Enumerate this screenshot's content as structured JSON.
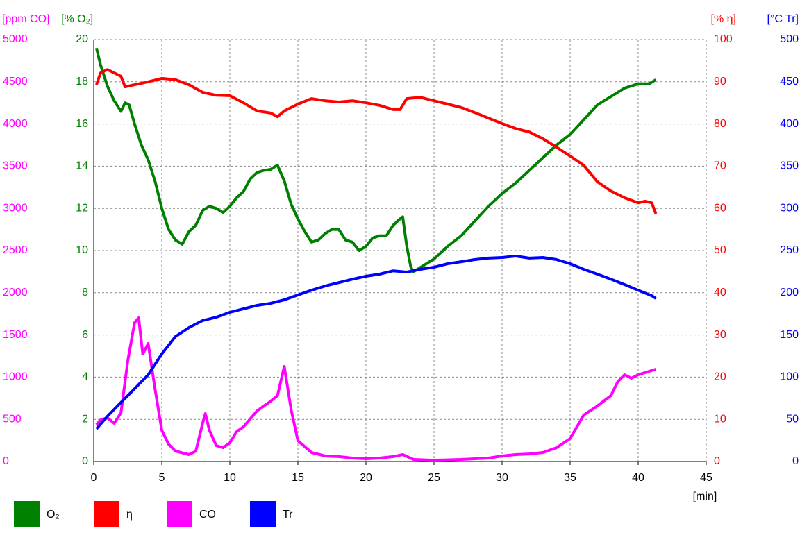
{
  "chart_data": {
    "type": "line",
    "xlabel": "[min]",
    "xlim": [
      0,
      45
    ],
    "xticks": [
      0,
      5,
      10,
      15,
      20,
      25,
      30,
      35,
      40,
      45
    ],
    "grid": true,
    "ylabel": "[% O₂]",
    "ylim": [
      0,
      20
    ],
    "yticks": [
      0,
      2,
      4,
      6,
      8,
      10,
      12,
      14,
      16,
      18,
      20
    ],
    "y2label": "[% η]",
    "y2lim": [
      0,
      100
    ],
    "y2ticks": [
      0,
      10,
      20,
      30,
      40,
      50,
      60,
      70,
      80,
      90,
      100
    ],
    "y3label": "[ppm CO]",
    "y3lim": [
      0,
      5000
    ],
    "y3ticks": [
      0,
      500,
      1000,
      1500,
      2000,
      2500,
      3000,
      3500,
      4000,
      4500,
      5000
    ],
    "y4label": "[°C Tr]",
    "y4lim": [
      0,
      500
    ],
    "y4ticks": [
      0,
      50,
      100,
      150,
      200,
      250,
      300,
      350,
      400,
      450,
      500
    ],
    "series": [
      {
        "name": "O₂",
        "color": "#008000",
        "axis": "y",
        "x": [
          0.2,
          0.5,
          1,
          1.5,
          2,
          2.3,
          2.6,
          3,
          3.5,
          4,
          4.5,
          5,
          5.5,
          6,
          6.5,
          7,
          7.5,
          8,
          8.5,
          9,
          9.5,
          10,
          10.5,
          11,
          11.5,
          12,
          12.5,
          13,
          13.5,
          14,
          14.5,
          15,
          15.5,
          16,
          16.5,
          17,
          17.5,
          18,
          18.5,
          19,
          19.5,
          20,
          20.5,
          21,
          21.5,
          22,
          22.5,
          22.7,
          23,
          23.3,
          23.5,
          24,
          24.5,
          25,
          26,
          27,
          28,
          29,
          30,
          31,
          32,
          33,
          34,
          35,
          36,
          37,
          38,
          39,
          40,
          40.8,
          41.3
        ],
        "values": [
          19.6,
          18.8,
          17.8,
          17.1,
          16.6,
          17.0,
          16.9,
          16,
          15,
          14.3,
          13.3,
          12,
          11,
          10.5,
          10.3,
          10.9,
          11.2,
          11.9,
          12.1,
          12,
          11.8,
          12.1,
          12.5,
          12.8,
          13.4,
          13.7,
          13.8,
          13.85,
          14.05,
          13.3,
          12.2,
          11.5,
          10.9,
          10.4,
          10.5,
          10.8,
          11,
          11,
          10.5,
          10.4,
          10,
          10.2,
          10.6,
          10.7,
          10.7,
          11.2,
          11.5,
          11.6,
          10.2,
          9.2,
          9,
          9.2,
          9.4,
          9.6,
          10.2,
          10.7,
          11.4,
          12.1,
          12.7,
          13.2,
          13.8,
          14.4,
          15,
          15.5,
          16.2,
          16.9,
          17.3,
          17.7,
          17.9,
          17.9,
          18.1
        ]
      },
      {
        "name": "η",
        "color": "#ff0000",
        "axis": "y2",
        "x": [
          0.2,
          0.5,
          1,
          1.5,
          2,
          2.3,
          3,
          4,
          5,
          6,
          7,
          8,
          9,
          10,
          11,
          12,
          13,
          13.5,
          14,
          15,
          16,
          17,
          18,
          19,
          20,
          21,
          22,
          22.5,
          23,
          24,
          25,
          26,
          27,
          28,
          29,
          30,
          31,
          32,
          33,
          34,
          35,
          36,
          37,
          38,
          39,
          40,
          40.5,
          41,
          41.3
        ],
        "values": [
          89.3,
          92.1,
          92.9,
          92.1,
          91.3,
          88.8,
          89.3,
          90,
          90.8,
          90.5,
          89.3,
          87.5,
          86.8,
          86.7,
          85,
          83.1,
          82.6,
          81.7,
          83.1,
          84.7,
          86,
          85.5,
          85.2,
          85.5,
          85,
          84.4,
          83.4,
          83.4,
          86,
          86.3,
          85.5,
          84.7,
          83.9,
          82.7,
          81.4,
          80.1,
          78.9,
          78.1,
          76.5,
          74.5,
          72.4,
          70.2,
          66.3,
          64.1,
          62.5,
          61.3,
          61.7,
          61.3,
          58.7
        ]
      },
      {
        "name": "CO",
        "color": "#ff00ff",
        "axis": "y3",
        "x": [
          0.2,
          0.5,
          1,
          1.5,
          2,
          2.5,
          3,
          3.3,
          3.6,
          4,
          4.5,
          5,
          5.5,
          6,
          7,
          7.5,
          8,
          8.2,
          8.5,
          9,
          9.5,
          10,
          10.5,
          11,
          12,
          13,
          13.5,
          14,
          14.5,
          15,
          16,
          17,
          18,
          19,
          20,
          21,
          22,
          22.7,
          23.5,
          25,
          27,
          29,
          30,
          31,
          32,
          33,
          34,
          35,
          36,
          37,
          38,
          38.5,
          39,
          39.5,
          40,
          41.3
        ],
        "values": [
          436,
          493,
          518,
          452,
          576,
          1192,
          1645,
          1702,
          1275,
          1398,
          863,
          370,
          206,
          123,
          82,
          123,
          452,
          567,
          370,
          189,
          164,
          222,
          354,
          411,
          600,
          715,
          781,
          1127,
          617,
          247,
          107,
          66,
          58,
          41,
          33,
          41,
          58,
          82,
          25,
          16,
          25,
          41,
          66,
          82,
          90,
          107,
          164,
          271,
          551,
          658,
          781,
          946,
          1028,
          987,
          1028,
          1094
        ]
      },
      {
        "name": "Tr",
        "color": "#0000ff",
        "axis": "y4",
        "x": [
          0.2,
          1,
          2,
          3,
          4,
          5,
          6,
          7,
          8,
          9,
          10,
          11,
          12,
          13,
          14,
          15,
          16,
          17,
          18,
          19,
          20,
          21,
          22,
          23,
          24,
          25,
          26,
          27,
          28,
          29,
          30,
          31,
          32,
          33,
          34,
          35,
          36,
          37,
          38,
          39,
          40,
          41,
          41.3
        ],
        "values": [
          38.7,
          53.5,
          70,
          86.3,
          102.8,
          127.5,
          148,
          158.7,
          167,
          171,
          176.8,
          181,
          185,
          187.5,
          191.6,
          197.4,
          203,
          208,
          212,
          216,
          219.6,
          222,
          226,
          224.5,
          227.8,
          230.3,
          234.4,
          236.8,
          239.3,
          241,
          241.8,
          243.4,
          241,
          241.8,
          239.3,
          234.4,
          227.8,
          222,
          216,
          209.7,
          203,
          196.5,
          193.3
        ]
      }
    ]
  }
}
